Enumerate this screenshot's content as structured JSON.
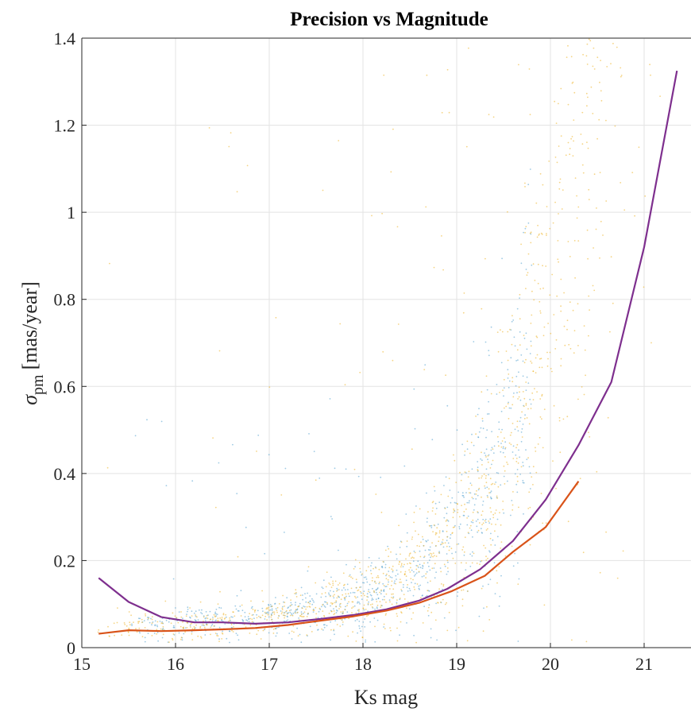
{
  "chart_data": {
    "type": "scatter",
    "title": "Precision vs Magnitude",
    "xlabel": "Ks mag",
    "ylabel_symbol": "σ",
    "ylabel_subscript": "pm",
    "ylabel_unit": "[mas/year]",
    "xlim": [
      15,
      21.5
    ],
    "ylim": [
      0,
      1.4
    ],
    "xticks": [
      "15",
      "16",
      "17",
      "18",
      "19",
      "20",
      "21"
    ],
    "yticks": [
      "0",
      "0.2",
      "0.4",
      "0.6",
      "0.8",
      "1",
      "1.2",
      "1.4"
    ],
    "grid": true,
    "series": [
      {
        "type": "scatter",
        "color": "#4e9fce",
        "x_range": [
          15.5,
          19.8
        ],
        "y_center": "follows median trend",
        "density": "high"
      },
      {
        "type": "scatter",
        "color": "#edb120",
        "x_range": [
          15.1,
          21.5
        ],
        "y_center": "follows median trend",
        "density": "high"
      },
      {
        "type": "line",
        "color": "#7e2f8e",
        "x": [
          15.18,
          15.5,
          15.85,
          16.2,
          16.5,
          16.85,
          17.2,
          17.55,
          17.9,
          18.25,
          18.6,
          18.9,
          19.25,
          19.6,
          19.95,
          20.3,
          20.65,
          21.0,
          21.35
        ],
        "y": [
          0.16,
          0.105,
          0.07,
          0.058,
          0.058,
          0.055,
          0.058,
          0.066,
          0.075,
          0.088,
          0.108,
          0.135,
          0.18,
          0.245,
          0.34,
          0.465,
          0.61,
          0.92,
          1.325
        ]
      },
      {
        "type": "line",
        "color": "#d95319",
        "x": [
          15.18,
          15.5,
          15.85,
          16.2,
          16.5,
          16.85,
          17.2,
          17.55,
          17.9,
          18.25,
          18.6,
          18.95,
          19.3,
          19.6,
          19.95,
          20.3
        ],
        "y": [
          0.032,
          0.04,
          0.038,
          0.04,
          0.042,
          0.045,
          0.052,
          0.062,
          0.072,
          0.085,
          0.103,
          0.13,
          0.165,
          0.22,
          0.277,
          0.382
        ]
      }
    ]
  }
}
